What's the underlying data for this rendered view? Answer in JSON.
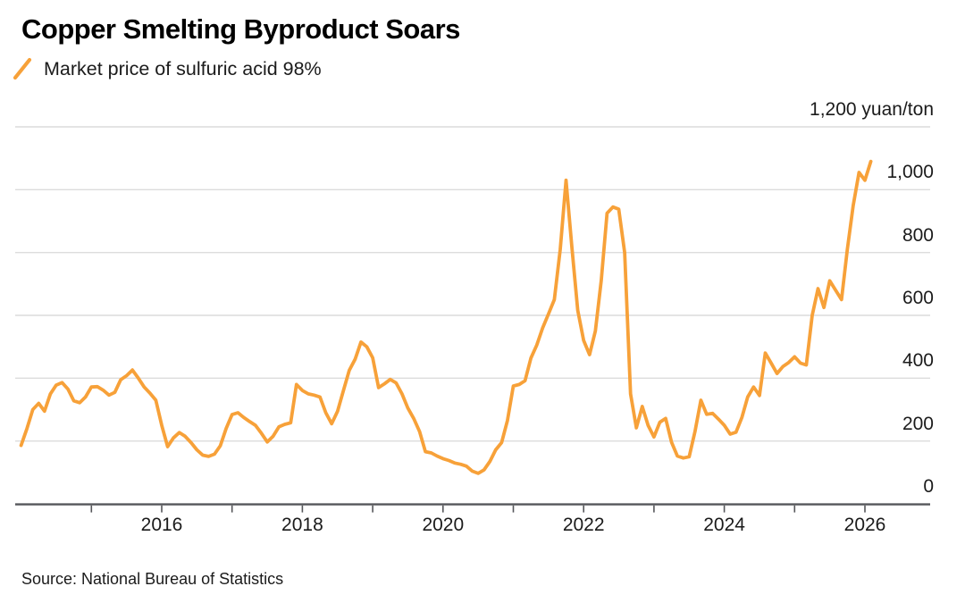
{
  "header": {
    "title": "Copper Smelting Byproduct Soars",
    "legend": {
      "label": "Market price of sulfuric acid 98%",
      "marker": "orange-slash"
    }
  },
  "source_line": "Source: National Bureau of Statistics",
  "colors": {
    "line": "#F7A139",
    "gridline": "#DCDCDC",
    "axis": "#55565A",
    "text": "#1B1B1B"
  },
  "chart_data": {
    "type": "line",
    "title": "Copper Smelting Byproduct Soars",
    "unit_label": "1,200 yuan/ton",
    "ylabel": "yuan/ton",
    "ylim": [
      0,
      1200
    ],
    "grid": "horizontal",
    "legend_position": "top-left",
    "gridline_values": [
      200,
      400,
      600,
      800,
      1000,
      1200
    ],
    "yticks": [
      {
        "value": 0,
        "label": "0"
      },
      {
        "value": 200,
        "label": "200"
      },
      {
        "value": 400,
        "label": "400"
      },
      {
        "value": 600,
        "label": "600"
      },
      {
        "value": 800,
        "label": "800"
      },
      {
        "value": 1000,
        "label": "1,000"
      }
    ],
    "xticks": [
      {
        "year": 2015,
        "label": ""
      },
      {
        "year": 2016,
        "label": "2016"
      },
      {
        "year": 2017,
        "label": ""
      },
      {
        "year": 2018,
        "label": "2018"
      },
      {
        "year": 2019,
        "label": ""
      },
      {
        "year": 2020,
        "label": "2020"
      },
      {
        "year": 2021,
        "label": ""
      },
      {
        "year": 2022,
        "label": "2022"
      },
      {
        "year": 2023,
        "label": ""
      },
      {
        "year": 2024,
        "label": "2024"
      },
      {
        "year": 2025,
        "label": ""
      },
      {
        "year": 2026,
        "label": "2026"
      }
    ],
    "series": [
      {
        "name": "Market price of sulfuric acid 98%",
        "unit": "yuan/ton",
        "frequency": "monthly",
        "start": "2014-01",
        "end": "2026-02",
        "values": [
          186,
          240,
          300,
          320,
          295,
          350,
          378,
          386,
          365,
          328,
          322,
          340,
          372,
          373,
          362,
          346,
          355,
          395,
          408,
          426,
          400,
          372,
          352,
          330,
          250,
          182,
          210,
          227,
          215,
          195,
          172,
          155,
          151,
          158,
          185,
          240,
          284,
          290,
          275,
          262,
          250,
          225,
          197,
          215,
          245,
          253,
          258,
          380,
          361,
          350,
          346,
          340,
          290,
          255,
          295,
          360,
          425,
          460,
          515,
          500,
          465,
          370,
          382,
          396,
          385,
          350,
          305,
          272,
          230,
          166,
          162,
          152,
          144,
          138,
          130,
          126,
          120,
          104,
          97,
          108,
          135,
          172,
          195,
          265,
          375,
          380,
          392,
          464,
          505,
          560,
          605,
          650,
          810,
          1030,
          815,
          616,
          520,
          475,
          550,
          711,
          925,
          945,
          938,
          800,
          350,
          242,
          310,
          250,
          213,
          260,
          272,
          196,
          152,
          146,
          150,
          230,
          330,
          285,
          288,
          270,
          250,
          222,
          228,
          275,
          340,
          372,
          345,
          480,
          448,
          415,
          437,
          450,
          468,
          448,
          442,
          600,
          685,
          625,
          710,
          680,
          650,
          810,
          950,
          1055,
          1030,
          1090
        ]
      }
    ]
  }
}
